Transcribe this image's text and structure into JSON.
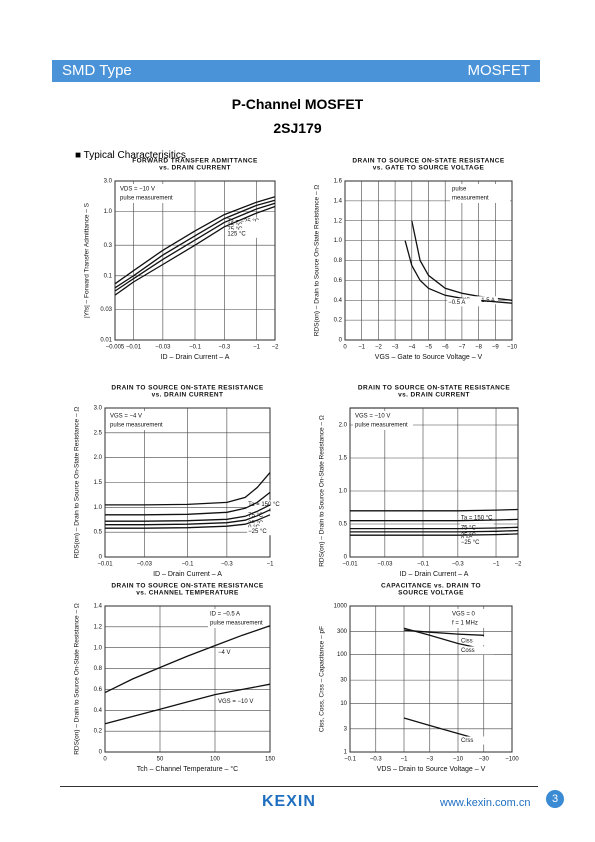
{
  "header": {
    "left": "SMD Type",
    "right": "MOSFET"
  },
  "title": "P-Channel MOSFET",
  "part_number": "2SJ179",
  "section": "■ Typical  Characterisitics",
  "footer": {
    "logo": "KEXIN",
    "url": "www.kexin.com.cn",
    "page": "3"
  },
  "chart_data": [
    {
      "type": "line",
      "title": [
        "FORWARD TRANSFER ADMITTANCE",
        "vs. DRAIN CURRENT"
      ],
      "x_label": "ID – Drain Current – A",
      "y_label": "|Yfs| – Forward Transfer Admittance – S",
      "xlog": true,
      "ylog": true,
      "grid": true,
      "xlim": [
        -0.005,
        -2
      ],
      "ylim": [
        0.01,
        3
      ],
      "xticks": [
        {
          "value": -0.005,
          "label": "−0.005"
        },
        {
          "value": -0.01,
          "label": "−0.01"
        },
        {
          "value": -0.03,
          "label": "−0.03"
        },
        {
          "value": -0.1,
          "label": "−0.1"
        },
        {
          "value": -0.3,
          "label": "−0.3"
        },
        {
          "value": -1,
          "label": "−1"
        },
        {
          "value": -2,
          "label": "−2"
        }
      ],
      "yticks": [
        0.01,
        0.03,
        0.1,
        0.3,
        {
          "value": 1,
          "label": "1.0"
        },
        {
          "value": 3,
          "label": "3.0"
        }
      ],
      "annotations": [
        "VDS = −10 V",
        "pulse measurement"
      ],
      "x": [
        -0.005,
        -0.01,
        -0.03,
        -0.1,
        -0.3,
        -1,
        -2
      ],
      "series": [
        {
          "name": "Ta = −25 °C",
          "color": "#111111",
          "values": [
            0.075,
            0.12,
            0.25,
            0.5,
            0.9,
            1.4,
            1.7
          ]
        },
        {
          "name": "25 °C",
          "color": "#111111",
          "values": [
            0.065,
            0.1,
            0.21,
            0.42,
            0.78,
            1.25,
            1.5
          ]
        },
        {
          "name": "75 °C",
          "color": "#111111",
          "values": [
            0.058,
            0.09,
            0.18,
            0.36,
            0.68,
            1.1,
            1.35
          ]
        },
        {
          "name": "125 °C",
          "color": "#111111",
          "values": [
            0.05,
            0.08,
            0.15,
            0.3,
            0.58,
            0.95,
            1.2
          ]
        }
      ]
    },
    {
      "type": "line",
      "title": [
        "DRAIN TO SOURCE ON-STATE RESISTANCE",
        "vs. GATE TO SOURCE VOLTAGE"
      ],
      "x_label": "VGS – Gate to Source Voltage – V",
      "y_label": "RDS(on) – Drain to Source On-State Resistance – Ω",
      "xlog": false,
      "ylog": false,
      "grid": true,
      "xlim": [
        0,
        -10
      ],
      "ylim": [
        0,
        1.6
      ],
      "xticks": [
        0,
        {
          "value": -1,
          "label": "−1"
        },
        {
          "value": -2,
          "label": "−2"
        },
        {
          "value": -3,
          "label": "−3"
        },
        {
          "value": -4,
          "label": "−4"
        },
        {
          "value": -5,
          "label": "−5"
        },
        {
          "value": -6,
          "label": "−6"
        },
        {
          "value": -7,
          "label": "−7"
        },
        {
          "value": -8,
          "label": "−8"
        },
        {
          "value": -9,
          "label": "−9"
        },
        {
          "value": -10,
          "label": "−10"
        }
      ],
      "yticks": [
        0,
        0.2,
        0.4,
        0.6,
        0.8,
        {
          "value": 1,
          "label": "1.0"
        },
        1.2,
        1.4,
        1.6
      ],
      "annotations": [
        "pulse",
        "measurement"
      ],
      "series": [
        {
          "name": "ID = −1.5 A",
          "color": "#111111",
          "x": [
            -4,
            -4.5,
            -5,
            -6,
            -7,
            -8,
            -10
          ],
          "values": [
            1.2,
            0.8,
            0.65,
            0.52,
            0.47,
            0.44,
            0.4
          ]
        },
        {
          "name": "−0.5 A",
          "color": "#111111",
          "x": [
            -3.6,
            -4,
            -4.5,
            -5,
            -6,
            -7,
            -8,
            -10
          ],
          "values": [
            1.0,
            0.75,
            0.6,
            0.52,
            0.45,
            0.42,
            0.4,
            0.37
          ]
        }
      ]
    },
    {
      "type": "line",
      "title": [
        "DRAIN TO SOURCE ON-STATE RESISTANCE",
        "vs. DRAIN CURRENT"
      ],
      "x_label": "ID – Drain Current – A",
      "y_label": "RDS(on) – Drain to Source On-State Resistance – Ω",
      "xlog": true,
      "ylog": false,
      "grid": true,
      "xlim": [
        -0.01,
        -1
      ],
      "ylim": [
        0,
        3
      ],
      "xticks": [
        {
          "value": -0.01,
          "label": "−0.01"
        },
        {
          "value": -0.03,
          "label": "−0.03"
        },
        {
          "value": -0.1,
          "label": "−0.1"
        },
        {
          "value": -0.3,
          "label": "−0.3"
        },
        {
          "value": -1,
          "label": "−1"
        }
      ],
      "yticks": [
        0,
        0.5,
        {
          "value": 1,
          "label": "1.0"
        },
        1.5,
        {
          "value": 2,
          "label": "2.0"
        },
        2.5,
        {
          "value": 3,
          "label": "3.0"
        }
      ],
      "annotations": [
        "VGS = −4 V",
        "pulse measurement"
      ],
      "x": [
        -0.01,
        -0.03,
        -0.1,
        -0.3,
        -0.5,
        -0.7,
        -1
      ],
      "series": [
        {
          "name": "Ta = 150 °C",
          "color": "#111111",
          "values": [
            1.05,
            1.05,
            1.06,
            1.1,
            1.2,
            1.4,
            1.7
          ]
        },
        {
          "name": "75 °C",
          "color": "#111111",
          "values": [
            0.85,
            0.85,
            0.86,
            0.9,
            0.98,
            1.1,
            1.3
          ]
        },
        {
          "name": "25 °C",
          "color": "#111111",
          "values": [
            0.72,
            0.72,
            0.73,
            0.76,
            0.82,
            0.92,
            1.05
          ]
        },
        {
          "name": "0 °C",
          "color": "#111111",
          "values": [
            0.65,
            0.65,
            0.66,
            0.69,
            0.74,
            0.83,
            0.95
          ]
        },
        {
          "name": "−25 °C",
          "color": "#111111",
          "values": [
            0.58,
            0.58,
            0.59,
            0.62,
            0.66,
            0.74,
            0.85
          ]
        }
      ]
    },
    {
      "type": "line",
      "title": [
        "DRAIN TO SOURCE ON-STATE RESISTANCE",
        "vs. DRAIN CURRENT"
      ],
      "x_label": "ID – Drain Current – A",
      "y_label": "RDS(on) – Drain to Source On-State Resistance – Ω",
      "xlog": true,
      "ylog": false,
      "grid": true,
      "xlim": [
        -0.01,
        -2
      ],
      "ylim": [
        0,
        2
      ],
      "xticks": [
        {
          "value": -0.01,
          "label": "−0.01"
        },
        {
          "value": -0.03,
          "label": "−0.03"
        },
        {
          "value": -0.1,
          "label": "−0.1"
        },
        {
          "value": -0.3,
          "label": "−0.3"
        },
        {
          "value": -1,
          "label": "−1"
        },
        {
          "value": -2,
          "label": "−2"
        }
      ],
      "yticks": [
        0,
        0.5,
        {
          "value": 1,
          "label": "1.0"
        },
        1.5,
        {
          "value": 2,
          "label": "2.0"
        }
      ],
      "annotations": [
        "VGS = −10 V",
        "pulse measurement"
      ],
      "x": [
        -0.01,
        -0.03,
        -0.1,
        -0.3,
        -1,
        -2
      ],
      "series": [
        {
          "name": "Ta = 150 °C",
          "color": "#111111",
          "values": [
            0.7,
            0.7,
            0.7,
            0.7,
            0.71,
            0.72
          ]
        },
        {
          "name": "75 °C",
          "color": "#111111",
          "values": [
            0.55,
            0.55,
            0.55,
            0.55,
            0.56,
            0.57
          ]
        },
        {
          "name": "25 °C",
          "color": "#111111",
          "values": [
            0.43,
            0.43,
            0.43,
            0.43,
            0.44,
            0.45
          ]
        },
        {
          "name": "0 °C",
          "color": "#111111",
          "values": [
            0.38,
            0.38,
            0.38,
            0.38,
            0.39,
            0.4
          ]
        },
        {
          "name": "−25 °C",
          "color": "#111111",
          "values": [
            0.33,
            0.33,
            0.33,
            0.33,
            0.34,
            0.35
          ]
        }
      ]
    },
    {
      "type": "line",
      "title": [
        "DRAIN TO SOURCE ON-STATE RESISTANCE",
        "vs. CHANNEL TEMPERATURE"
      ],
      "x_label": "Tch – Channel Temperature – °C",
      "y_label": "RDS(on) – Drain to Source On-State Resistance – Ω",
      "xlog": false,
      "ylog": false,
      "grid": true,
      "xlim": [
        0,
        150
      ],
      "ylim": [
        0,
        1.4
      ],
      "xticks": [
        0,
        50,
        100,
        150
      ],
      "yticks": [
        0,
        0.2,
        0.4,
        0.6,
        0.8,
        {
          "value": 1,
          "label": "1.0"
        },
        1.2,
        1.4
      ],
      "annotations": [
        "ID = −0.5 A",
        "pulse measurement"
      ],
      "x": [
        0,
        25,
        50,
        75,
        100,
        125,
        150
      ],
      "series": [
        {
          "name": "−4 V",
          "color": "#111111",
          "values": [
            0.57,
            0.7,
            0.81,
            0.92,
            1.02,
            1.12,
            1.21
          ]
        },
        {
          "name": "VGS = −10 V",
          "color": "#111111",
          "values": [
            0.27,
            0.34,
            0.41,
            0.48,
            0.55,
            0.6,
            0.65
          ]
        }
      ]
    },
    {
      "type": "line",
      "title": [
        "CAPACITANCE vs. DRAIN TO",
        "SOURCE VOLTAGE"
      ],
      "x_label": "VDS – Drain to Source Voltage – V",
      "y_label": "Ciss, Coss, Crss – Capacitance – pF",
      "xlog": true,
      "ylog": true,
      "grid": true,
      "xlim": [
        -0.1,
        -100
      ],
      "ylim": [
        1,
        1000
      ],
      "xticks": [
        {
          "value": -0.1,
          "label": "−0.1"
        },
        {
          "value": -0.3,
          "label": "−0.3"
        },
        {
          "value": -1,
          "label": "−1"
        },
        {
          "value": -3,
          "label": "−3"
        },
        {
          "value": -10,
          "label": "−10"
        },
        {
          "value": -30,
          "label": "−30"
        },
        {
          "value": -100,
          "label": "−100"
        }
      ],
      "yticks": [
        1,
        3,
        10,
        30,
        100,
        300,
        1000
      ],
      "annotations": [
        "VGS = 0",
        "f = 1 MHz"
      ],
      "x": [
        -1,
        -3,
        -10,
        -30
      ],
      "series": [
        {
          "name": "Ciss",
          "color": "#111111",
          "values": [
            320,
            290,
            265,
            250
          ]
        },
        {
          "name": "Coss",
          "color": "#111111",
          "values": [
            350,
            250,
            170,
            130
          ]
        },
        {
          "name": "Crss",
          "color": "#111111",
          "values": [
            5,
            3.5,
            2.4,
            1.7
          ]
        }
      ]
    }
  ]
}
